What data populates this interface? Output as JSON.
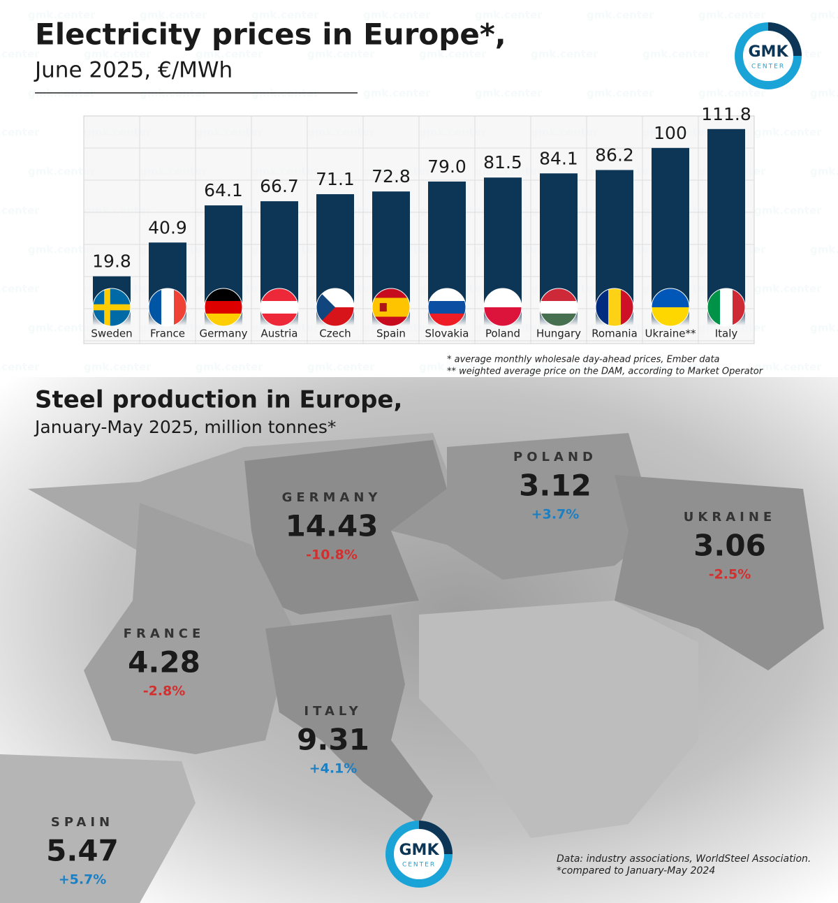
{
  "chart_data": {
    "type": "bar",
    "title": "Electricity prices in Europe*,",
    "subtitle": "June 2025, €/MWh",
    "categories": [
      "Sweden",
      "France",
      "Germany",
      "Austria",
      "Czech",
      "Spain",
      "Slovakia",
      "Poland",
      "Hungary",
      "Romania",
      "Ukraine**",
      "Italy"
    ],
    "values": [
      19.8,
      40.9,
      64.1,
      66.7,
      71.1,
      72.8,
      79.0,
      81.5,
      84.1,
      86.2,
      100,
      111.8
    ],
    "value_labels": [
      "19.8",
      "40.9",
      "64.1",
      "66.7",
      "71.1",
      "72.8",
      "79.0",
      "81.5",
      "84.1",
      "86.2",
      "100",
      "111.8"
    ],
    "color": "#0c3556",
    "ylim": [
      0,
      120
    ],
    "notes": [
      "* average monthly wholesale day-ahead prices, Ember data",
      "** weighted average price on the DAM, according to Market Operator"
    ]
  },
  "map": {
    "title": "Steel production in Europe,",
    "subtitle": "January-May 2025, million tonnes*",
    "countries": [
      {
        "name": "POLAND",
        "value": "3.12",
        "change": "+3.7%",
        "color": "#1b7fc4"
      },
      {
        "name": "GERMANY",
        "value": "14.43",
        "change": "-10.8%",
        "color": "#d32f2f"
      },
      {
        "name": "UKRAINE",
        "value": "3.06",
        "change": "-2.5%",
        "color": "#d32f2f"
      },
      {
        "name": "FRANCE",
        "value": "4.28",
        "change": "-2.8%",
        "color": "#d32f2f"
      },
      {
        "name": "ITALY",
        "value": "9.31",
        "change": "+4.1%",
        "color": "#1b7fc4"
      },
      {
        "name": "SPAIN",
        "value": "5.47",
        "change": "+5.7%",
        "color": "#1b7fc4"
      }
    ],
    "source": [
      "Data: industry associations, WorldSteel Association.",
      "*compared to January-May 2024"
    ]
  },
  "logo": {
    "name": "GMK",
    "sub": "CENTER"
  },
  "watermark": "gmk.center"
}
